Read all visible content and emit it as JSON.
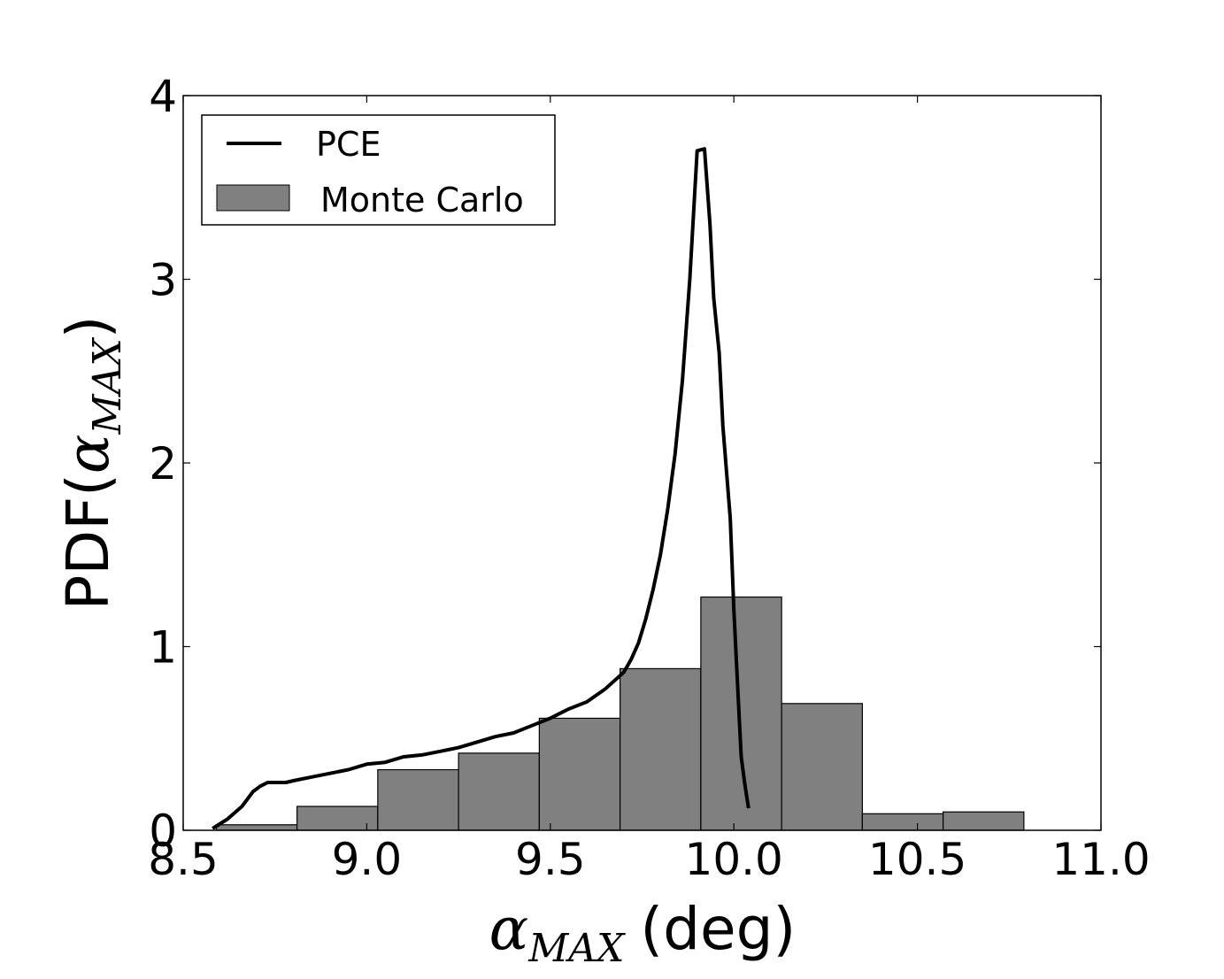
{
  "chart_data": {
    "type": "histogram+line",
    "xlabel": {
      "symbol": "α",
      "subscript": "MAX",
      "unit": "(deg)"
    },
    "ylabel": {
      "prefix": "PDF(",
      "symbol": "α",
      "subscript": "MAX",
      "suffix": ")"
    },
    "xlim": [
      8.5,
      11.0
    ],
    "ylim": [
      0,
      4
    ],
    "xticks": [
      "8.5",
      "9.0",
      "9.5",
      "10.0",
      "10.5",
      "11.0"
    ],
    "xtick_values": [
      8.5,
      9.0,
      9.5,
      10.0,
      10.5,
      11.0
    ],
    "yticks": [
      "0",
      "1",
      "2",
      "3",
      "4"
    ],
    "ytick_values": [
      0,
      1,
      2,
      3,
      4
    ],
    "legend": {
      "position": "upper-left",
      "entries": [
        "PCE",
        "Monte Carlo"
      ]
    },
    "colors": {
      "bars": "#808080",
      "line": "#000000",
      "frame": "#000000"
    },
    "histogram": {
      "name": "Monte Carlo",
      "edges": [
        8.59,
        8.81,
        9.03,
        9.25,
        9.47,
        9.69,
        9.91,
        10.13,
        10.35,
        10.57,
        10.79
      ],
      "values": [
        0.03,
        0.13,
        0.33,
        0.42,
        0.61,
        0.88,
        1.27,
        0.69,
        0.09,
        0.1
      ]
    },
    "series": [
      {
        "name": "PCE",
        "x": [
          8.58,
          8.62,
          8.66,
          8.69,
          8.71,
          8.73,
          8.75,
          8.78,
          8.8,
          8.85,
          8.9,
          8.95,
          9.0,
          9.05,
          9.1,
          9.15,
          9.2,
          9.25,
          9.3,
          9.35,
          9.4,
          9.45,
          9.5,
          9.55,
          9.6,
          9.65,
          9.7,
          9.72,
          9.74,
          9.76,
          9.78,
          9.8,
          9.82,
          9.84,
          9.86,
          9.88,
          9.9,
          9.92,
          9.935,
          9.945,
          9.96,
          9.97,
          9.99,
          10.0,
          10.01,
          10.02,
          10.03,
          10.04
        ],
        "y": [
          0.01,
          0.06,
          0.13,
          0.21,
          0.24,
          0.26,
          0.26,
          0.26,
          0.27,
          0.29,
          0.31,
          0.33,
          0.36,
          0.37,
          0.4,
          0.41,
          0.43,
          0.45,
          0.48,
          0.51,
          0.53,
          0.57,
          0.61,
          0.66,
          0.7,
          0.77,
          0.86,
          0.93,
          1.02,
          1.15,
          1.31,
          1.5,
          1.75,
          2.05,
          2.45,
          3.0,
          3.7,
          3.71,
          3.3,
          2.9,
          2.6,
          2.2,
          1.7,
          1.2,
          0.8,
          0.4,
          0.25,
          0.12
        ]
      }
    ]
  }
}
